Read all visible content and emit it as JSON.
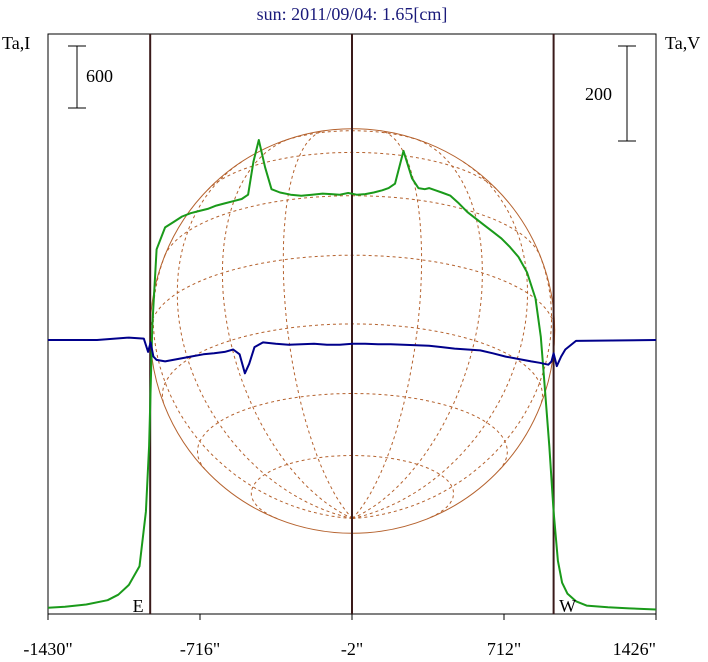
{
  "chart_data": {
    "type": "line",
    "title": "sun: 2011/09/04: 1.65[cm]",
    "left_axis_label": "Ta,I",
    "right_axis_label": "Ta,V",
    "scale_bar_left": "600",
    "scale_bar_right": "200",
    "xlim": [
      -1430,
      1426
    ],
    "x_ticks": [
      {
        "value": -1430,
        "label": "-1430\""
      },
      {
        "value": -716,
        "label": "-716\""
      },
      {
        "value": -2,
        "label": "-2\""
      },
      {
        "value": 712,
        "label": "712\""
      },
      {
        "value": 1426,
        "label": "1426\""
      }
    ],
    "vertical_lines": [
      -950,
      -2,
      945
    ],
    "markers": [
      {
        "label": "E",
        "x": -950
      },
      {
        "label": "W",
        "x": 945
      }
    ],
    "solar_radius": 950,
    "colors": {
      "stokes_i": "#1a9a1a",
      "stokes_v": "#00008b",
      "disk": "#b5622e",
      "title": "#1a1a7a",
      "vline": "#3a1a1a"
    },
    "series": [
      {
        "name": "I",
        "x": [
          -1430,
          -1350,
          -1250,
          -1150,
          -1100,
          -1050,
          -1000,
          -970,
          -955,
          -940,
          -920,
          -880,
          -840,
          -800,
          -760,
          -720,
          -680,
          -640,
          -600,
          -560,
          -520,
          -490,
          -465,
          -440,
          -410,
          -380,
          -340,
          -290,
          -240,
          -190,
          -140,
          -100,
          -60,
          -20,
          20,
          60,
          100,
          140,
          170,
          200,
          240,
          280,
          310,
          340,
          360,
          390,
          420,
          460,
          500,
          540,
          580,
          620,
          660,
          700,
          740,
          780,
          820,
          860,
          885,
          905,
          925,
          945,
          965,
          985,
          1010,
          1050,
          1100,
          1200,
          1300,
          1426
        ],
        "values": [
          20,
          30,
          50,
          90,
          140,
          230,
          400,
          900,
          1500,
          2600,
          3300,
          3500,
          3550,
          3600,
          3630,
          3650,
          3670,
          3700,
          3720,
          3740,
          3760,
          3800,
          4100,
          4300,
          4050,
          3850,
          3820,
          3800,
          3790,
          3800,
          3810,
          3805,
          3800,
          3815,
          3800,
          3805,
          3820,
          3840,
          3860,
          3900,
          4200,
          3950,
          3860,
          3850,
          3860,
          3840,
          3820,
          3790,
          3720,
          3640,
          3580,
          3520,
          3460,
          3400,
          3320,
          3230,
          3090,
          2850,
          2500,
          2000,
          1500,
          900,
          450,
          250,
          150,
          80,
          40,
          25,
          15,
          5
        ]
      },
      {
        "name": "V",
        "x": [
          -1430,
          -1200,
          -1050,
          -980,
          -960,
          -948,
          -935,
          -920,
          -880,
          -820,
          -760,
          -700,
          -650,
          -600,
          -560,
          -530,
          -505,
          -485,
          -460,
          -420,
          -360,
          -300,
          -240,
          -180,
          -120,
          -60,
          0,
          60,
          120,
          180,
          240,
          300,
          360,
          420,
          480,
          540,
          600,
          660,
          720,
          780,
          840,
          880,
          920,
          935,
          945,
          960,
          980,
          1000,
          1050,
          1426
        ],
        "values": [
          0,
          0,
          5,
          3,
          -25,
          -5,
          -35,
          -42,
          -45,
          -40,
          -35,
          -30,
          -28,
          -25,
          -20,
          -30,
          -70,
          -50,
          -15,
          -5,
          -8,
          -10,
          -9,
          -8,
          -10,
          -10,
          -8,
          -8,
          -9,
          -9,
          -10,
          -11,
          -12,
          -15,
          -18,
          -20,
          -22,
          -28,
          -35,
          -40,
          -45,
          -48,
          -52,
          -45,
          -28,
          -55,
          -35,
          -20,
          -2,
          0
        ]
      }
    ]
  }
}
